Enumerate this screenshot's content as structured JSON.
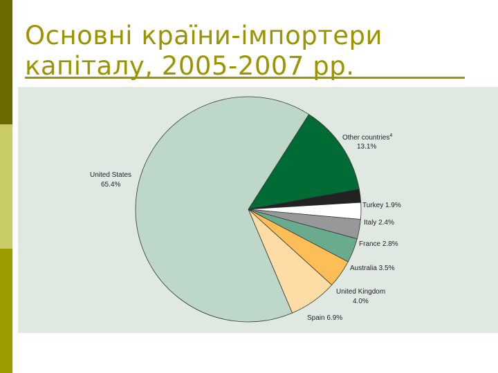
{
  "slide": {
    "title_line1": "Основні країни-імпортери",
    "title_line2": "капіталу, 2005-2007 рр.",
    "accent_colors": [
      "#6b6b00",
      "#c9cc66",
      "#9c9c00"
    ],
    "title_color": "#9a9400",
    "panel_color": "#dfe9e1"
  },
  "chart_data": {
    "type": "pie",
    "title": "",
    "slices": [
      {
        "name": "Other countries",
        "superscript": "4",
        "value": 13.1,
        "value_text": "13.1%",
        "color": "#006b35"
      },
      {
        "name": "Turkey",
        "value": 1.9,
        "value_text": "1.9%",
        "color": "#222222"
      },
      {
        "name": "Italy",
        "value": 2.4,
        "value_text": "2.4%",
        "color": "#ffffff"
      },
      {
        "name": "France",
        "value": 2.8,
        "value_text": "2.8%",
        "color": "#97989a"
      },
      {
        "name": "Australia",
        "value": 3.5,
        "value_text": "3.5%",
        "color": "#6aab8e"
      },
      {
        "name": "United Kingdom",
        "value": 4.0,
        "value_text": "4.0%",
        "color": "#fdbe57"
      },
      {
        "name": "Spain",
        "value": 6.9,
        "value_text": "6.9%",
        "color": "#fedca6"
      },
      {
        "name": "United States",
        "value": 65.4,
        "value_text": "65.4%",
        "color": "#bdd7c9"
      }
    ]
  }
}
